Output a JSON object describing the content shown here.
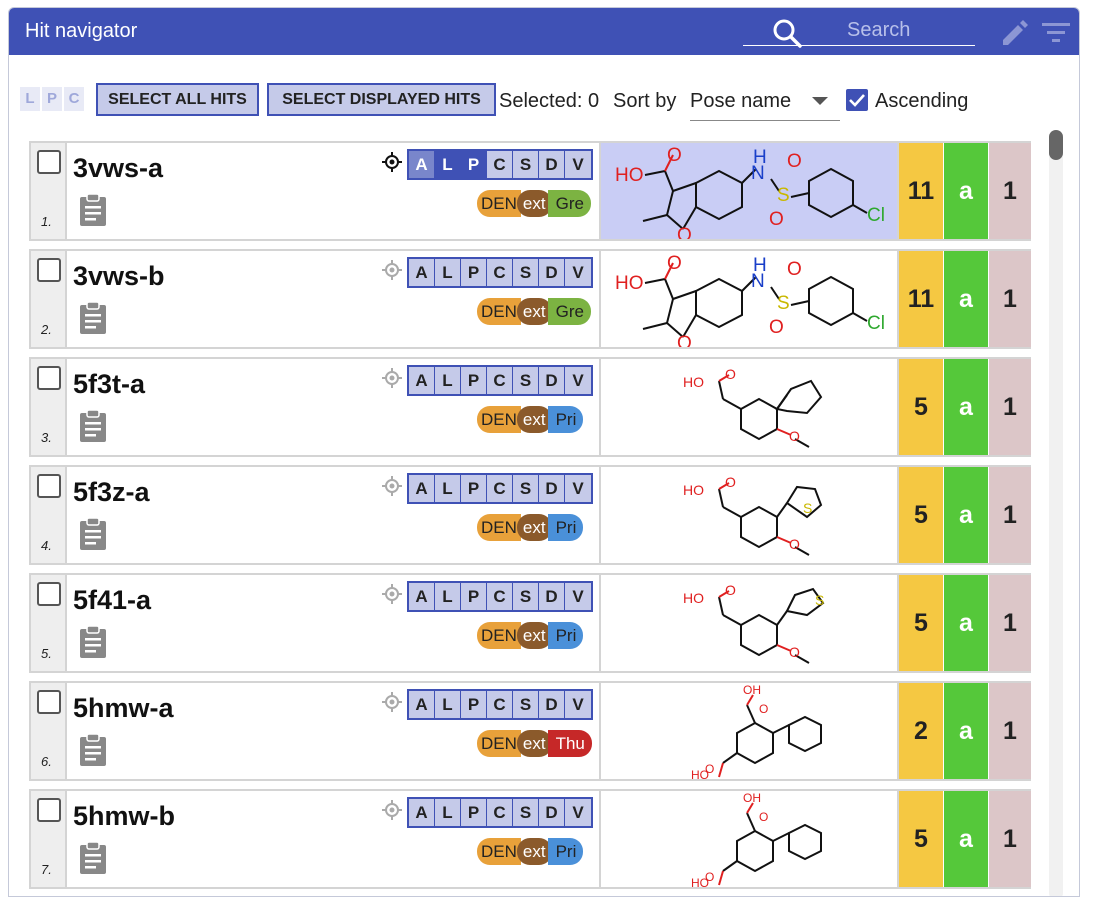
{
  "header": {
    "title": "Hit navigator",
    "search_placeholder": "Search"
  },
  "toolbar": {
    "lpc": [
      "L",
      "P",
      "C"
    ],
    "select_all": "SELECT ALL HITS",
    "select_displayed": "SELECT DISPLAYED HITS",
    "selected_label": "Selected: 0",
    "sort_label": "Sort by",
    "sort_value": "Pose name",
    "ascending_label": "Ascending",
    "ascending_checked": true
  },
  "letters": [
    "A",
    "L",
    "P",
    "C",
    "S",
    "D",
    "V"
  ],
  "rows": [
    {
      "index": "1.",
      "name": "3vws-a",
      "tags": [
        "DEN",
        "ext",
        "Gre"
      ],
      "tag_color": "#7cb342",
      "score1": "11",
      "score2": "a",
      "score3": "1",
      "highlight": true,
      "active": true
    },
    {
      "index": "2.",
      "name": "3vws-b",
      "tags": [
        "DEN",
        "ext",
        "Gre"
      ],
      "tag_color": "#7cb342",
      "score1": "11",
      "score2": "a",
      "score3": "1"
    },
    {
      "index": "3.",
      "name": "5f3t-a",
      "tags": [
        "DEN",
        "ext",
        "Pri"
      ],
      "tag_color": "#4a90d9",
      "score1": "5",
      "score2": "a",
      "score3": "1"
    },
    {
      "index": "4.",
      "name": "5f3z-a",
      "tags": [
        "DEN",
        "ext",
        "Pri"
      ],
      "tag_color": "#4a90d9",
      "score1": "5",
      "score2": "a",
      "score3": "1"
    },
    {
      "index": "5.",
      "name": "5f41-a",
      "tags": [
        "DEN",
        "ext",
        "Pri"
      ],
      "tag_color": "#4a90d9",
      "score1": "5",
      "score2": "a",
      "score3": "1"
    },
    {
      "index": "6.",
      "name": "5hmw-a",
      "tags": [
        "DEN",
        "ext",
        "Thu"
      ],
      "tag_color": "#c62828",
      "score1": "2",
      "score2": "a",
      "score3": "1"
    },
    {
      "index": "7.",
      "name": "5hmw-b",
      "tags": [
        "DEN",
        "ext",
        "Pri"
      ],
      "tag_color": "#4a90d9",
      "score1": "5",
      "score2": "a",
      "score3": "1"
    }
  ],
  "mol_labels": {
    "oh": "HO",
    "o": "O",
    "h": "H",
    "n": "N",
    "s": "S",
    "cl": "Cl",
    "oh2": "OH"
  }
}
